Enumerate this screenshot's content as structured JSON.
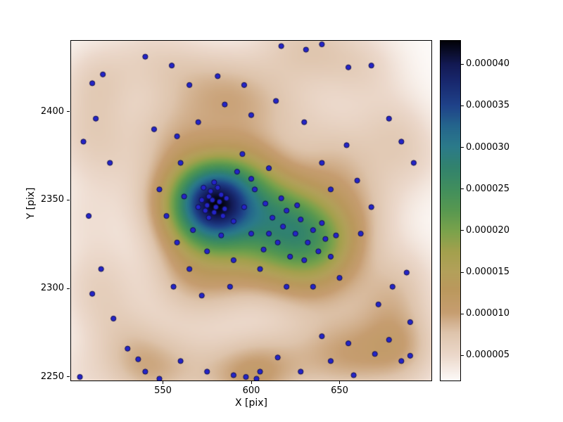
{
  "axes": {
    "xlabel": "X [pix]",
    "ylabel": "Y [pix]"
  },
  "chart_data": {
    "type": "heatmap",
    "subtype": "2d-kde-density-with-scatter-overlay",
    "title": "",
    "xlabel": "X [pix]",
    "ylabel": "Y [pix]",
    "xlim": [
      498,
      702
    ],
    "ylim": [
      2248,
      2440
    ],
    "grid": false,
    "xticks": {
      "values": [
        550,
        600,
        650
      ],
      "labels": [
        "550",
        "600",
        "650"
      ]
    },
    "yticks": {
      "values": [
        2250,
        2300,
        2350,
        2400
      ],
      "labels": [
        "2250",
        "2300",
        "2350",
        "2400"
      ]
    },
    "colorbar": {
      "position": "right",
      "vmin": 2e-06,
      "vmax": 4.28e-05,
      "ticks": {
        "values": [
          5e-06,
          1e-05,
          1.5e-05,
          2e-05,
          2.5e-05,
          3e-05,
          3.5e-05,
          4e-05
        ],
        "labels": [
          "0.000005",
          "0.000010",
          "0.000015",
          "0.000020",
          "0.000025",
          "0.000030",
          "0.000035",
          "0.000040"
        ]
      },
      "colormap_name": "gist_earth_r-like",
      "stops": [
        [
          0.0,
          253,
          250,
          248
        ],
        [
          0.07,
          236,
          217,
          204
        ],
        [
          0.14,
          222,
          196,
          172
        ],
        [
          0.2,
          198,
          157,
          112
        ],
        [
          0.27,
          186,
          152,
          92
        ],
        [
          0.32,
          179,
          160,
          90
        ],
        [
          0.38,
          163,
          160,
          77
        ],
        [
          0.44,
          122,
          162,
          75
        ],
        [
          0.5,
          88,
          152,
          80
        ],
        [
          0.56,
          66,
          143,
          92
        ],
        [
          0.63,
          49,
          130,
          110
        ],
        [
          0.69,
          43,
          122,
          138
        ],
        [
          0.75,
          36,
          101,
          140
        ],
        [
          0.81,
          31,
          66,
          137
        ],
        [
          0.88,
          24,
          40,
          110
        ],
        [
          0.93,
          19,
          26,
          84
        ],
        [
          1.0,
          2,
          2,
          8
        ]
      ]
    },
    "kde": {
      "bandwidth": 15
    },
    "marker": {
      "fill": "#2424c8",
      "edge": "#10104a",
      "radius": 3.6
    },
    "points": [
      [
        575,
        2347
      ],
      [
        578,
        2350
      ],
      [
        580,
        2346
      ],
      [
        576,
        2352
      ],
      [
        582,
        2349
      ],
      [
        574,
        2344
      ],
      [
        579,
        2343
      ],
      [
        577,
        2355
      ],
      [
        583,
        2353
      ],
      [
        572,
        2350
      ],
      [
        581,
        2357
      ],
      [
        585,
        2345
      ],
      [
        570,
        2346
      ],
      [
        576,
        2340
      ],
      [
        584,
        2341
      ],
      [
        579,
        2360
      ],
      [
        573,
        2357
      ],
      [
        586,
        2351
      ],
      [
        612,
        2340
      ],
      [
        618,
        2335
      ],
      [
        625,
        2331
      ],
      [
        632,
        2326
      ],
      [
        638,
        2321
      ],
      [
        645,
        2318
      ],
      [
        620,
        2344
      ],
      [
        628,
        2339
      ],
      [
        635,
        2333
      ],
      [
        642,
        2328
      ],
      [
        615,
        2326
      ],
      [
        622,
        2318
      ],
      [
        630,
        2316
      ],
      [
        640,
        2337
      ],
      [
        648,
        2330
      ],
      [
        610,
        2331
      ],
      [
        617,
        2351
      ],
      [
        626,
        2347
      ],
      [
        545,
        2390
      ],
      [
        558,
        2386
      ],
      [
        570,
        2394
      ],
      [
        585,
        2404
      ],
      [
        600,
        2398
      ],
      [
        614,
        2406
      ],
      [
        630,
        2394
      ],
      [
        560,
        2371
      ],
      [
        595,
        2376
      ],
      [
        610,
        2368
      ],
      [
        640,
        2371
      ],
      [
        654,
        2381
      ],
      [
        548,
        2356
      ],
      [
        552,
        2341
      ],
      [
        558,
        2326
      ],
      [
        565,
        2311
      ],
      [
        575,
        2321
      ],
      [
        590,
        2316
      ],
      [
        600,
        2331
      ],
      [
        605,
        2311
      ],
      [
        588,
        2301
      ],
      [
        572,
        2296
      ],
      [
        556,
        2301
      ],
      [
        620,
        2301
      ],
      [
        635,
        2301
      ],
      [
        650,
        2306
      ],
      [
        662,
        2331
      ],
      [
        668,
        2346
      ],
      [
        660,
        2361
      ],
      [
        645,
        2356
      ],
      [
        602,
        2356
      ],
      [
        596,
        2346
      ],
      [
        590,
        2338
      ],
      [
        608,
        2348
      ],
      [
        600,
        2362
      ],
      [
        592,
        2366
      ],
      [
        583,
        2330
      ],
      [
        567,
        2333
      ],
      [
        562,
        2352
      ],
      [
        607,
        2322
      ],
      [
        617,
        2437
      ],
      [
        631,
        2435
      ],
      [
        640,
        2438
      ],
      [
        540,
        2431
      ],
      [
        510,
        2416
      ],
      [
        516,
        2421
      ],
      [
        555,
        2426
      ],
      [
        596,
        2415
      ],
      [
        581,
        2420
      ],
      [
        565,
        2415
      ],
      [
        655,
        2425
      ],
      [
        668,
        2426
      ],
      [
        505,
        2383
      ],
      [
        512,
        2396
      ],
      [
        520,
        2371
      ],
      [
        508,
        2341
      ],
      [
        515,
        2311
      ],
      [
        510,
        2297
      ],
      [
        522,
        2283
      ],
      [
        530,
        2266
      ],
      [
        540,
        2253
      ],
      [
        548,
        2249
      ],
      [
        560,
        2259
      ],
      [
        575,
        2253
      ],
      [
        590,
        2251
      ],
      [
        597,
        2250
      ],
      [
        605,
        2253
      ],
      [
        603,
        2249
      ],
      [
        615,
        2261
      ],
      [
        628,
        2253
      ],
      [
        645,
        2259
      ],
      [
        658,
        2251
      ],
      [
        503,
        2250
      ],
      [
        536,
        2260
      ],
      [
        640,
        2273
      ],
      [
        655,
        2269
      ],
      [
        670,
        2263
      ],
      [
        678,
        2271
      ],
      [
        685,
        2259
      ],
      [
        690,
        2281
      ],
      [
        688,
        2309
      ],
      [
        680,
        2301
      ],
      [
        672,
        2291
      ],
      [
        692,
        2371
      ],
      [
        685,
        2383
      ],
      [
        678,
        2396
      ],
      [
        690,
        2262
      ]
    ]
  }
}
